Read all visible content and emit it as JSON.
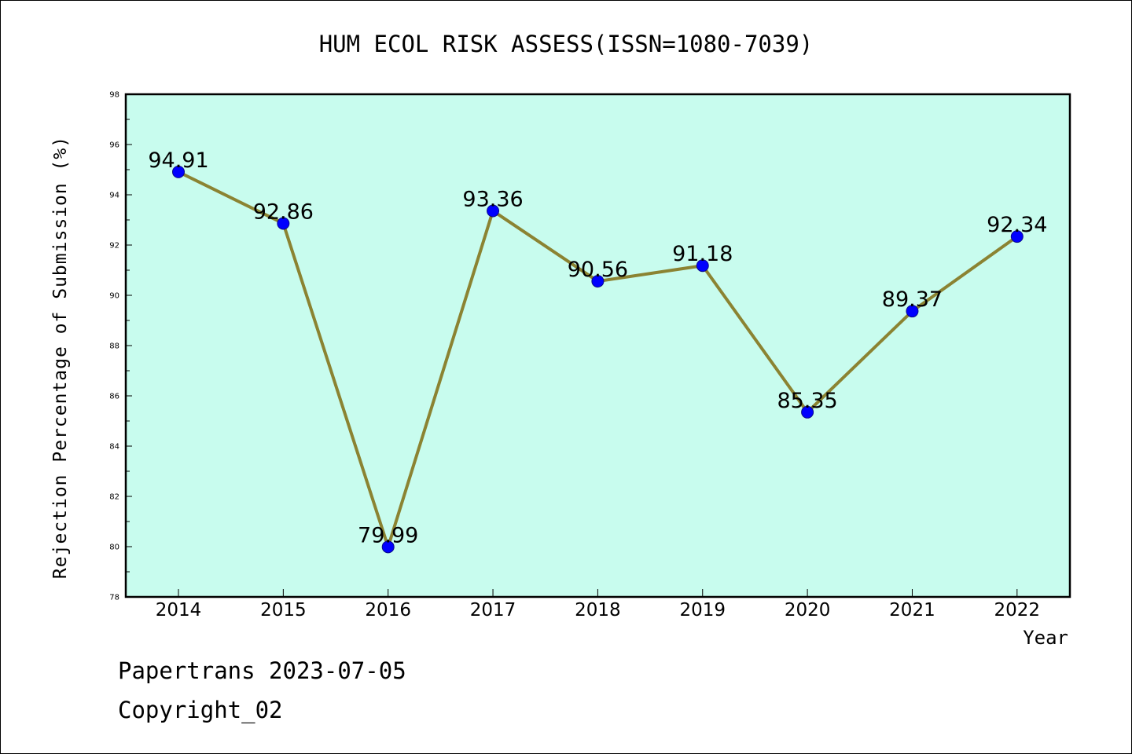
{
  "chart_data": {
    "type": "line",
    "title": "HUM ECOL RISK ASSESS(ISSN=1080-7039)",
    "xlabel": "Year",
    "ylabel": "Rejection Percentage of Submission (%)",
    "categories": [
      "2014",
      "2015",
      "2016",
      "2017",
      "2018",
      "2019",
      "2020",
      "2021",
      "2022"
    ],
    "series": [
      {
        "values": [
          94.91,
          92.86,
          79.99,
          93.36,
          90.56,
          91.18,
          85.35,
          89.37,
          92.34
        ]
      }
    ],
    "data_labels": [
      "94.91",
      "92.86",
      "79.99",
      "93.36",
      "90.56",
      "91.18",
      "85.35",
      "89.37",
      "92.34"
    ],
    "ylim": [
      78,
      98
    ],
    "yticks": [
      78,
      80,
      82,
      84,
      86,
      88,
      90,
      92,
      94,
      96,
      98
    ],
    "ytick_labels": [
      "78",
      "80",
      "82",
      "84",
      "86",
      "88",
      "90",
      "92",
      "94",
      "96",
      "98"
    ],
    "grid": false,
    "legend": false,
    "colors": {
      "plot_background": "#c8fcee",
      "line": "#8b8332",
      "marker": "#0000ff",
      "marker_edge": "#0a0a8a",
      "frame": "#000000"
    }
  },
  "watermark": {
    "line1": "Papertrans 2023-07-05",
    "line2": "Copyright_02"
  }
}
